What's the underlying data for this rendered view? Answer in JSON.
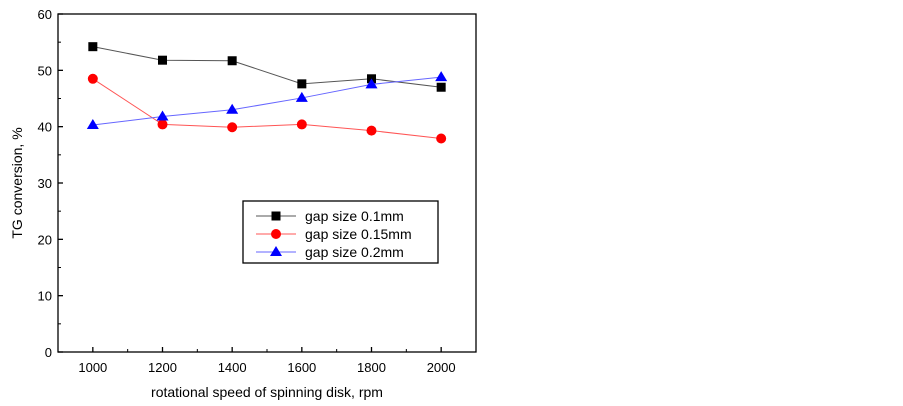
{
  "chart_data": {
    "type": "line",
    "title": "",
    "xlabel": "rotational speed of spinning disk, rpm",
    "ylabel": "TG conversion, %",
    "xlim": [
      900,
      2100
    ],
    "ylim": [
      0,
      60
    ],
    "xticks": [
      1000,
      1200,
      1400,
      1600,
      1800,
      2000
    ],
    "yticks": [
      0,
      10,
      20,
      30,
      40,
      50,
      60
    ],
    "grid": false,
    "legend_position": "center",
    "x": [
      1000,
      1200,
      1400,
      1600,
      1800,
      2000
    ],
    "series": [
      {
        "name": "gap size 0.1mm",
        "marker": "square",
        "color": "#000000",
        "line_color": "#555555",
        "values": [
          54.2,
          51.8,
          51.7,
          47.6,
          48.5,
          47.0
        ]
      },
      {
        "name": "gap size 0.15mm",
        "marker": "circle",
        "color": "#ff0000",
        "line_color": "#ff5555",
        "values": [
          48.5,
          40.4,
          39.9,
          40.4,
          39.3,
          37.9
        ]
      },
      {
        "name": "gap size 0.2mm",
        "marker": "triangle",
        "color": "#0000ff",
        "line_color": "#6666ff",
        "values": [
          40.3,
          41.8,
          43.0,
          45.1,
          47.5,
          48.8
        ]
      }
    ]
  }
}
